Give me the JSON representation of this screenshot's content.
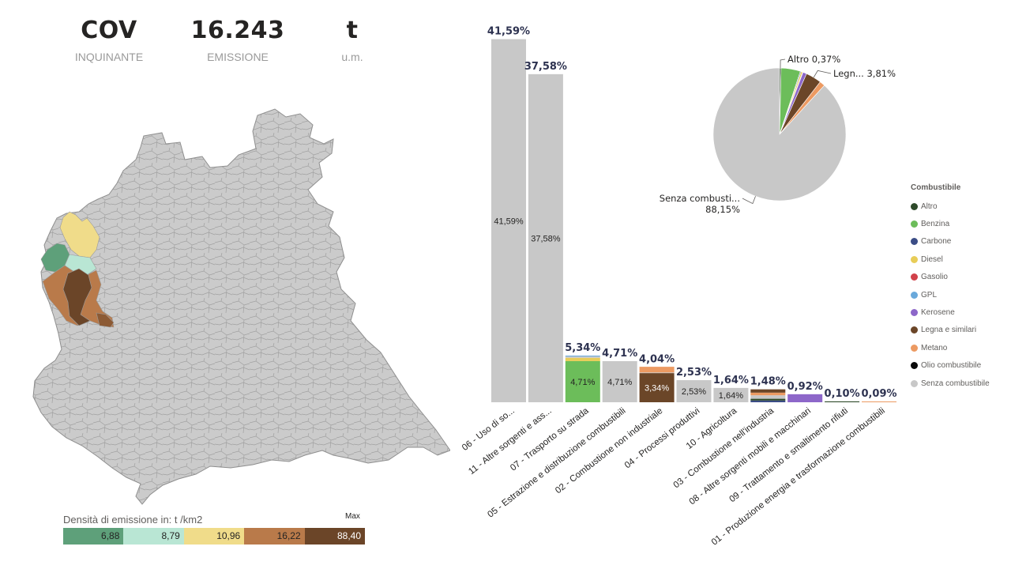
{
  "kpis": [
    {
      "value": "COV",
      "label": "INQUINANTE"
    },
    {
      "value": "16.243",
      "label": "EMISSIONE"
    },
    {
      "value": "t",
      "label": "u.m."
    }
  ],
  "map_legend": {
    "title": "Densità di emissione in:  t /km2",
    "max_label": "Max",
    "bins": [
      {
        "value": "6,88",
        "color": "#5ea07a"
      },
      {
        "value": "8,79",
        "color": "#b9e6d4"
      },
      {
        "value": "10,96",
        "color": "#f0dc8a"
      },
      {
        "value": "16,22",
        "color": "#b97a4a"
      },
      {
        "value": "88,40",
        "color": "#6b4528"
      }
    ]
  },
  "colors": {
    "Altro": "#2e4a2a",
    "Benzina": "#6cbd5a",
    "Carbone": "#3b4d86",
    "Diesel": "#e8cd58",
    "Gasolio": "#d1414a",
    "GPL": "#6aa9db",
    "Kerosene": "#8d67c9",
    "Legna e similari": "#6b4628",
    "Metano": "#ec9a62",
    "Olio combustibile": "#0a0a0a",
    "Senza combustibile": "#c8c8c8"
  },
  "chart_data": [
    {
      "type": "bar",
      "stacked": true,
      "categories": [
        "06 - Uso di so...",
        "11 - Altre sorgenti e ass...",
        "07 - Trasporto su strada",
        "05 - Estrazione e distribuzione combustibili",
        "02 - Combustione non industriale",
        "04 - Processi produttivi",
        "10 - Agricoltura",
        "03 - Combustione nell'industria",
        "08 - Altre sorgenti mobili e macchinari",
        "09 - Trattamento e smaltimento rifiuti",
        "01 - Produzione energia e trasformazione combustibili"
      ],
      "totals": [
        41.59,
        37.58,
        5.34,
        4.71,
        4.04,
        2.53,
        1.64,
        1.48,
        0.92,
        0.1,
        0.09
      ],
      "total_labels": [
        "41,59%",
        "37,58%",
        "5,34%",
        "4,71%",
        "4,04%",
        "2,53%",
        "1,64%",
        "1,48%",
        "0,92%",
        "0,10%",
        "0,09%"
      ],
      "stacks": [
        [
          {
            "fuel": "Senza combustibile",
            "value": 41.59,
            "label": "41,59%"
          }
        ],
        [
          {
            "fuel": "Senza combustibile",
            "value": 37.58,
            "label": "37,58%"
          }
        ],
        [
          {
            "fuel": "Benzina",
            "value": 4.71,
            "label": "4,71%"
          },
          {
            "fuel": "Diesel",
            "value": 0.38
          },
          {
            "fuel": "Senza combustibile",
            "value": 0.15
          },
          {
            "fuel": "GPL",
            "value": 0.1
          }
        ],
        [
          {
            "fuel": "Senza combustibile",
            "value": 4.71,
            "label": "4,71%"
          }
        ],
        [
          {
            "fuel": "Legna e similari",
            "value": 3.34,
            "label": "3,34%"
          },
          {
            "fuel": "Senza combustibile",
            "value": 0.05
          },
          {
            "fuel": "Metano",
            "value": 0.65
          }
        ],
        [
          {
            "fuel": "Senza combustibile",
            "value": 2.53,
            "label": "2,53%"
          }
        ],
        [
          {
            "fuel": "Senza combustibile",
            "value": 1.64,
            "label": "1,64%"
          }
        ],
        [
          {
            "fuel": "Carbone",
            "value": 0.2
          },
          {
            "fuel": "Altro",
            "value": 0.2
          },
          {
            "fuel": "Senza combustibile",
            "value": 0.4
          },
          {
            "fuel": "Metano",
            "value": 0.3
          },
          {
            "fuel": "Legna e similari",
            "value": 0.38
          }
        ],
        [
          {
            "fuel": "Kerosene",
            "value": 0.92
          }
        ],
        [
          {
            "fuel": "Altro",
            "value": 0.1
          }
        ],
        [
          {
            "fuel": "Metano",
            "value": 0.09
          }
        ]
      ],
      "ylim": [
        0,
        42
      ]
    },
    {
      "type": "pie",
      "slices": [
        {
          "label": "Altro",
          "value": 0.37
        },
        {
          "label": "Benzina",
          "value": 4.71
        },
        {
          "label": "Carbone",
          "value": 0.2
        },
        {
          "label": "Diesel",
          "value": 0.38
        },
        {
          "label": "GPL",
          "value": 0.1
        },
        {
          "label": "Kerosene",
          "value": 0.92
        },
        {
          "label": "Legna e similari",
          "value": 3.81
        },
        {
          "label": "Metano",
          "value": 1.31
        },
        {
          "label": "Senza combustibile",
          "value": 88.15
        }
      ],
      "annotations": [
        {
          "text": "Altro 0,37%"
        },
        {
          "text": "Legn... 3,81%"
        },
        {
          "text": "Senza combusti...",
          "text2": "88,15%"
        }
      ]
    }
  ],
  "fuel_legend": {
    "title": "Combustibile",
    "items": [
      "Altro",
      "Benzina",
      "Carbone",
      "Diesel",
      "Gasolio",
      "GPL",
      "Kerosene",
      "Legna e similari",
      "Metano",
      "Olio combustibile",
      "Senza combustibile"
    ]
  }
}
